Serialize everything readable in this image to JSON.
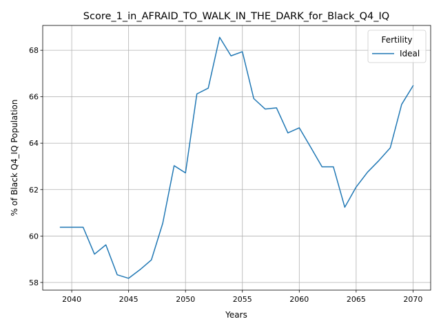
{
  "chart_data": {
    "type": "line",
    "title": "Score_1_in_AFRAID_TO_WALK_IN_THE_DARK_for_Black_Q4_IQ",
    "xlabel": "Years",
    "ylabel": "% of Black Q4_IQ Population",
    "xlim": [
      2037.45,
      2071.55
    ],
    "ylim": [
      57.67,
      69.07
    ],
    "x_ticks": [
      2040,
      2045,
      2050,
      2055,
      2060,
      2065,
      2070
    ],
    "y_ticks": [
      58,
      60,
      62,
      64,
      66,
      68
    ],
    "grid": true,
    "legend": {
      "title": "Fertility",
      "position": "top-right"
    },
    "series": [
      {
        "name": "Ideal",
        "color": "#1f77b4",
        "x": [
          2039,
          2040,
          2041,
          2042,
          2043,
          2044,
          2045,
          2046,
          2047,
          2048,
          2049,
          2050,
          2051,
          2052,
          2053,
          2054,
          2055,
          2056,
          2057,
          2058,
          2059,
          2060,
          2061,
          2062,
          2063,
          2064,
          2065,
          2066,
          2067,
          2068,
          2069,
          2070
        ],
        "values": [
          60.38,
          60.38,
          60.38,
          59.22,
          59.62,
          58.33,
          58.18,
          58.55,
          58.97,
          60.55,
          63.03,
          62.72,
          66.12,
          66.37,
          68.56,
          67.76,
          67.94,
          65.92,
          65.47,
          65.52,
          64.44,
          64.66,
          63.83,
          62.98,
          62.98,
          61.24,
          62.11,
          62.75,
          63.25,
          63.8,
          65.67,
          66.47
        ]
      }
    ]
  }
}
